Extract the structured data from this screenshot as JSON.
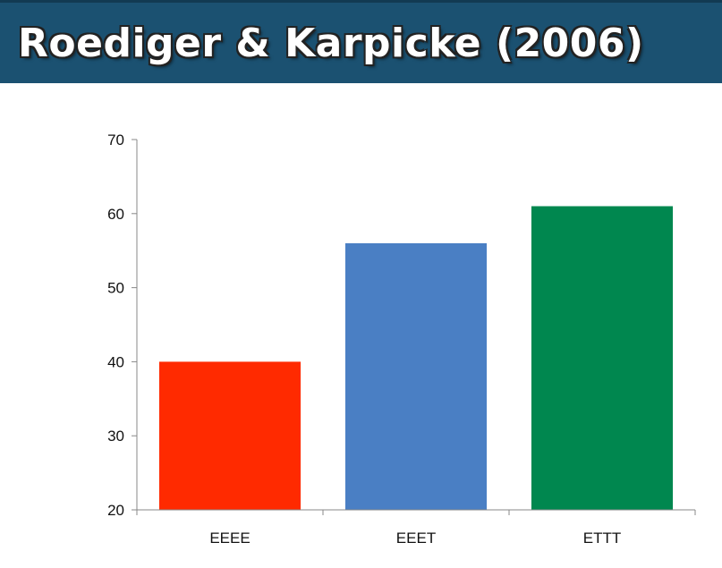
{
  "header": {
    "title": "Roediger & Karpicke (2006)"
  },
  "chart_data": {
    "type": "bar",
    "title": "",
    "xlabel": "",
    "ylabel": "",
    "categories": [
      "EEEE",
      "EEET",
      "ETTT"
    ],
    "values": [
      40,
      56,
      61
    ],
    "colors": [
      "#ff2a00",
      "#4a7fc4",
      "#00874f"
    ],
    "ylim": [
      20,
      70
    ],
    "yticks": [
      20,
      30,
      40,
      50,
      60,
      70
    ],
    "grid": false,
    "legend": "none"
  }
}
